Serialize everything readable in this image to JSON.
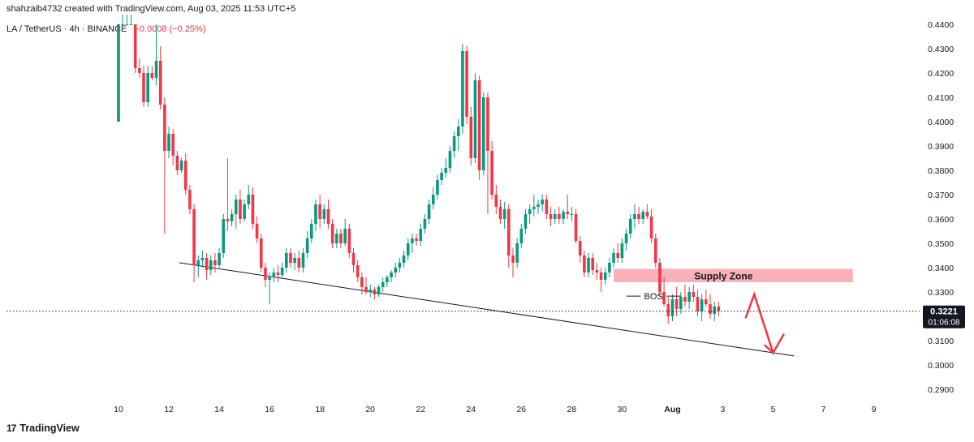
{
  "header": {
    "credit": "shahzaib4732 created with TradingView.com, Aug 03, 2025 11:53 UTC+5"
  },
  "symbol": {
    "title": "LA / TetherUS · 4h · BINANCE",
    "change": "−0.0008 (−0.25%)"
  },
  "branding": {
    "logo_mark": "17",
    "logo_text": "TradingView"
  },
  "colors": {
    "up": "#089981",
    "down": "#f23645",
    "supply_zone": "#f7a8ae",
    "arrow": "#f23645",
    "trendline": "#131722"
  },
  "chart_data": {
    "type": "candlestick",
    "instrument": "LA / TetherUS",
    "interval": "4h",
    "exchange": "BINANCE",
    "ylim": [
      0.286,
      0.444
    ],
    "y_ticks": [
      "0.2900",
      "0.3000",
      "0.3100",
      "0.3200",
      "0.3300",
      "0.3400",
      "0.3500",
      "0.3600",
      "0.3700",
      "0.3800",
      "0.3900",
      "0.4000",
      "0.4100",
      "0.4200",
      "0.4300",
      "0.4400"
    ],
    "x_ticks": [
      {
        "label": "10",
        "bar": 0
      },
      {
        "label": "12",
        "bar": 12
      },
      {
        "label": "14",
        "bar": 24
      },
      {
        "label": "16",
        "bar": 36
      },
      {
        "label": "18",
        "bar": 48
      },
      {
        "label": "20",
        "bar": 60
      },
      {
        "label": "22",
        "bar": 72
      },
      {
        "label": "24",
        "bar": 84
      },
      {
        "label": "26",
        "bar": 96
      },
      {
        "label": "28",
        "bar": 108
      },
      {
        "label": "30",
        "bar": 120
      },
      {
        "label": "Aug",
        "bar": 132
      },
      {
        "label": "3",
        "bar": 144
      },
      {
        "label": "5",
        "bar": 156
      },
      {
        "label": "7",
        "bar": 168
      },
      {
        "label": "9",
        "bar": 180
      }
    ],
    "last_price": {
      "value": 0.3221,
      "label": "0.3221",
      "countdown": "01:06:08"
    },
    "annotations": [
      {
        "type": "zone",
        "label": "Supply Zone",
        "from_bar": 118,
        "to_bar": 175,
        "low": 0.334,
        "high": 0.3395
      },
      {
        "type": "bos",
        "label": "BOS",
        "bar_start": 121,
        "bar_end": 134,
        "price": 0.3283
      },
      {
        "type": "trendline",
        "from": {
          "bar": 14.5,
          "price": 0.342
        },
        "to": {
          "bar": 161,
          "price": 0.3037
        }
      },
      {
        "type": "arrow",
        "points": [
          {
            "bar": 149.5,
            "price": 0.3195
          },
          {
            "bar": 151.5,
            "price": 0.329
          },
          {
            "bar": 156,
            "price": 0.305
          },
          {
            "bar": 158.5,
            "price": 0.3125
          }
        ]
      }
    ],
    "candles": [
      [
        0.4,
        0.444,
        0.4,
        0.444
      ],
      [
        0.444,
        0.444,
        0.444,
        0.444
      ],
      [
        0.444,
        0.444,
        0.444,
        0.444
      ],
      [
        0.444,
        0.444,
        0.444,
        0.444
      ],
      [
        0.444,
        0.444,
        0.42,
        0.422
      ],
      [
        0.422,
        0.426,
        0.418,
        0.42
      ],
      [
        0.42,
        0.423,
        0.406,
        0.408
      ],
      [
        0.408,
        0.423,
        0.406,
        0.42
      ],
      [
        0.42,
        0.423,
        0.417,
        0.418
      ],
      [
        0.418,
        0.444,
        0.415,
        0.425
      ],
      [
        0.425,
        0.431,
        0.405,
        0.407
      ],
      [
        0.407,
        0.41,
        0.354,
        0.388
      ],
      [
        0.388,
        0.398,
        0.385,
        0.395
      ],
      [
        0.395,
        0.397,
        0.382,
        0.386
      ],
      [
        0.386,
        0.388,
        0.378,
        0.38
      ],
      [
        0.38,
        0.385,
        0.379,
        0.384
      ],
      [
        0.384,
        0.387,
        0.37,
        0.372
      ],
      [
        0.372,
        0.374,
        0.362,
        0.364
      ],
      [
        0.364,
        0.366,
        0.334,
        0.341
      ],
      [
        0.341,
        0.345,
        0.336,
        0.343
      ],
      [
        0.343,
        0.347,
        0.34,
        0.344
      ],
      [
        0.344,
        0.346,
        0.335,
        0.339
      ],
      [
        0.339,
        0.345,
        0.337,
        0.343
      ],
      [
        0.343,
        0.346,
        0.338,
        0.341
      ],
      [
        0.341,
        0.348,
        0.34,
        0.346
      ],
      [
        0.346,
        0.362,
        0.344,
        0.36
      ],
      [
        0.36,
        0.385,
        0.355,
        0.359
      ],
      [
        0.359,
        0.364,
        0.357,
        0.362
      ],
      [
        0.362,
        0.37,
        0.356,
        0.368
      ],
      [
        0.368,
        0.372,
        0.358,
        0.36
      ],
      [
        0.36,
        0.368,
        0.359,
        0.366
      ],
      [
        0.366,
        0.374,
        0.364,
        0.37
      ],
      [
        0.37,
        0.373,
        0.356,
        0.358
      ],
      [
        0.358,
        0.361,
        0.35,
        0.352
      ],
      [
        0.352,
        0.354,
        0.338,
        0.34
      ],
      [
        0.34,
        0.342,
        0.332,
        0.335
      ],
      [
        0.335,
        0.338,
        0.325,
        0.336
      ],
      [
        0.336,
        0.34,
        0.334,
        0.338
      ],
      [
        0.338,
        0.341,
        0.334,
        0.337
      ],
      [
        0.337,
        0.342,
        0.336,
        0.34
      ],
      [
        0.34,
        0.348,
        0.338,
        0.346
      ],
      [
        0.346,
        0.348,
        0.34,
        0.342
      ],
      [
        0.342,
        0.346,
        0.339,
        0.344
      ],
      [
        0.344,
        0.347,
        0.338,
        0.34
      ],
      [
        0.34,
        0.348,
        0.338,
        0.346
      ],
      [
        0.346,
        0.355,
        0.344,
        0.352
      ],
      [
        0.352,
        0.36,
        0.35,
        0.358
      ],
      [
        0.358,
        0.368,
        0.355,
        0.366
      ],
      [
        0.366,
        0.37,
        0.356,
        0.36
      ],
      [
        0.36,
        0.366,
        0.358,
        0.364
      ],
      [
        0.364,
        0.368,
        0.356,
        0.358
      ],
      [
        0.358,
        0.36,
        0.348,
        0.35
      ],
      [
        0.35,
        0.356,
        0.348,
        0.354
      ],
      [
        0.354,
        0.356,
        0.348,
        0.35
      ],
      [
        0.35,
        0.36,
        0.349,
        0.356
      ],
      [
        0.356,
        0.358,
        0.344,
        0.346
      ],
      [
        0.346,
        0.348,
        0.338,
        0.341
      ],
      [
        0.341,
        0.343,
        0.334,
        0.336
      ],
      [
        0.336,
        0.338,
        0.329,
        0.332
      ],
      [
        0.332,
        0.336,
        0.329,
        0.33
      ],
      [
        0.33,
        0.333,
        0.328,
        0.331
      ],
      [
        0.331,
        0.332,
        0.327,
        0.329
      ],
      [
        0.329,
        0.333,
        0.328,
        0.332
      ],
      [
        0.332,
        0.336,
        0.33,
        0.334
      ],
      [
        0.334,
        0.337,
        0.332,
        0.336
      ],
      [
        0.336,
        0.339,
        0.334,
        0.338
      ],
      [
        0.338,
        0.342,
        0.336,
        0.34
      ],
      [
        0.34,
        0.344,
        0.338,
        0.342
      ],
      [
        0.342,
        0.347,
        0.34,
        0.345
      ],
      [
        0.345,
        0.352,
        0.343,
        0.35
      ],
      [
        0.35,
        0.354,
        0.346,
        0.352
      ],
      [
        0.352,
        0.354,
        0.349,
        0.351
      ],
      [
        0.351,
        0.358,
        0.349,
        0.356
      ],
      [
        0.356,
        0.362,
        0.354,
        0.36
      ],
      [
        0.36,
        0.368,
        0.358,
        0.366
      ],
      [
        0.366,
        0.373,
        0.364,
        0.37
      ],
      [
        0.37,
        0.378,
        0.368,
        0.376
      ],
      [
        0.376,
        0.381,
        0.374,
        0.379
      ],
      [
        0.379,
        0.385,
        0.377,
        0.381
      ],
      [
        0.381,
        0.39,
        0.379,
        0.388
      ],
      [
        0.388,
        0.396,
        0.385,
        0.394
      ],
      [
        0.394,
        0.401,
        0.388,
        0.398
      ],
      [
        0.398,
        0.432,
        0.395,
        0.429
      ],
      [
        0.429,
        0.431,
        0.399,
        0.402
      ],
      [
        0.402,
        0.406,
        0.382,
        0.385
      ],
      [
        0.385,
        0.42,
        0.383,
        0.417
      ],
      [
        0.417,
        0.419,
        0.376,
        0.38
      ],
      [
        0.38,
        0.412,
        0.378,
        0.41
      ],
      [
        0.41,
        0.412,
        0.362,
        0.388
      ],
      [
        0.388,
        0.392,
        0.368,
        0.37
      ],
      [
        0.37,
        0.374,
        0.362,
        0.365
      ],
      [
        0.365,
        0.368,
        0.358,
        0.36
      ],
      [
        0.36,
        0.367,
        0.356,
        0.364
      ],
      [
        0.364,
        0.366,
        0.34,
        0.345
      ],
      [
        0.345,
        0.348,
        0.336,
        0.342
      ],
      [
        0.342,
        0.352,
        0.34,
        0.35
      ],
      [
        0.35,
        0.358,
        0.348,
        0.356
      ],
      [
        0.356,
        0.364,
        0.354,
        0.362
      ],
      [
        0.362,
        0.366,
        0.358,
        0.364
      ],
      [
        0.364,
        0.37,
        0.361,
        0.365
      ],
      [
        0.365,
        0.368,
        0.362,
        0.366
      ],
      [
        0.366,
        0.37,
        0.363,
        0.368
      ],
      [
        0.368,
        0.37,
        0.36,
        0.362
      ],
      [
        0.362,
        0.365,
        0.357,
        0.36
      ],
      [
        0.36,
        0.364,
        0.358,
        0.362
      ],
      [
        0.362,
        0.365,
        0.358,
        0.36
      ],
      [
        0.36,
        0.364,
        0.358,
        0.363
      ],
      [
        0.363,
        0.37,
        0.36,
        0.362
      ],
      [
        0.362,
        0.365,
        0.359,
        0.362
      ],
      [
        0.362,
        0.364,
        0.35,
        0.351
      ],
      [
        0.351,
        0.353,
        0.342,
        0.345
      ],
      [
        0.345,
        0.347,
        0.336,
        0.338
      ],
      [
        0.338,
        0.346,
        0.336,
        0.344
      ],
      [
        0.344,
        0.346,
        0.337,
        0.339
      ],
      [
        0.339,
        0.342,
        0.335,
        0.338
      ],
      [
        0.338,
        0.34,
        0.33,
        0.335
      ],
      [
        0.335,
        0.34,
        0.333,
        0.338
      ],
      [
        0.338,
        0.344,
        0.336,
        0.342
      ],
      [
        0.342,
        0.348,
        0.34,
        0.346
      ],
      [
        0.346,
        0.35,
        0.342,
        0.344
      ],
      [
        0.344,
        0.352,
        0.342,
        0.35
      ],
      [
        0.35,
        0.356,
        0.347,
        0.354
      ],
      [
        0.354,
        0.362,
        0.352,
        0.36
      ],
      [
        0.36,
        0.366,
        0.356,
        0.362
      ],
      [
        0.362,
        0.365,
        0.358,
        0.36
      ],
      [
        0.36,
        0.364,
        0.358,
        0.363
      ],
      [
        0.363,
        0.366,
        0.36,
        0.361
      ],
      [
        0.361,
        0.364,
        0.35,
        0.352
      ],
      [
        0.352,
        0.354,
        0.34,
        0.342
      ],
      [
        0.342,
        0.344,
        0.328,
        0.33
      ],
      [
        0.33,
        0.336,
        0.324,
        0.325
      ],
      [
        0.325,
        0.328,
        0.317,
        0.32
      ],
      [
        0.32,
        0.329,
        0.318,
        0.327
      ],
      [
        0.327,
        0.332,
        0.32,
        0.323
      ],
      [
        0.323,
        0.33,
        0.321,
        0.328
      ],
      [
        0.328,
        0.333,
        0.324,
        0.326
      ],
      [
        0.326,
        0.332,
        0.323,
        0.33
      ],
      [
        0.33,
        0.333,
        0.326,
        0.328
      ],
      [
        0.328,
        0.331,
        0.32,
        0.322
      ],
      [
        0.322,
        0.329,
        0.318,
        0.327
      ],
      [
        0.327,
        0.331,
        0.324,
        0.325
      ],
      [
        0.325,
        0.329,
        0.319,
        0.321
      ],
      [
        0.321,
        0.326,
        0.318,
        0.324
      ],
      [
        0.324,
        0.326,
        0.32,
        0.3221
      ]
    ]
  }
}
